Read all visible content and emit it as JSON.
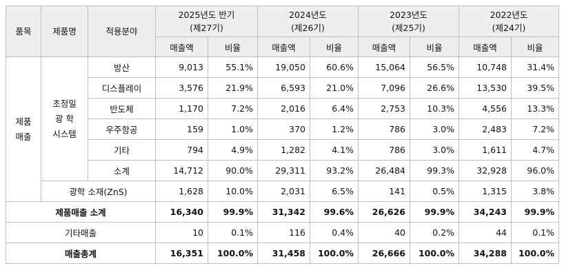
{
  "headers": {
    "group": "품목",
    "product": "제품명",
    "application": "적용분야",
    "periods": [
      {
        "line1": "2025년도 반기",
        "line2": "(제27기)"
      },
      {
        "line1": "2024년도",
        "line2": "(제26기)"
      },
      {
        "line1": "2023년도",
        "line2": "(제25기)"
      },
      {
        "line1": "2022년도",
        "line2": "(제24기)"
      }
    ],
    "sales": "매출액",
    "ratio": "비율"
  },
  "group_label": {
    "line1": "제품",
    "line2": "매출"
  },
  "product_label": {
    "line1": "초정밀",
    "line2": "광 학",
    "line3": "시스템"
  },
  "rows": [
    {
      "label": "방산",
      "cells": [
        "9,013",
        "55.1%",
        "19,050",
        "60.6%",
        "15,064",
        "56.5%",
        "10,748",
        "31.4%"
      ]
    },
    {
      "label": "디스플레이",
      "cells": [
        "3,576",
        "21.9%",
        "6,593",
        "21.0%",
        "7,096",
        "26.6%",
        "13,530",
        "39.5%"
      ]
    },
    {
      "label": "반도체",
      "cells": [
        "1,170",
        "7.2%",
        "2,016",
        "6.4%",
        "2,753",
        "10.3%",
        "4,556",
        "13.3%"
      ]
    },
    {
      "label": "우주항공",
      "cells": [
        "159",
        "1.0%",
        "370",
        "1.2%",
        "786",
        "3.0%",
        "2,483",
        "7.2%"
      ]
    },
    {
      "label": "기타",
      "cells": [
        "794",
        "4.9%",
        "1,282",
        "4.1%",
        "786",
        "3.0%",
        "1,611",
        "4.7%"
      ]
    },
    {
      "label": "소계",
      "cells": [
        "14,712",
        "90.0%",
        "29,311",
        "93.2%",
        "26,484",
        "99.3%",
        "32,928",
        "96.0%"
      ]
    }
  ],
  "zns_row": {
    "label": "광학 소재(ZnS)",
    "cells": [
      "1,628",
      "10.0%",
      "2,031",
      "6.5%",
      "141",
      "0.5%",
      "1,315",
      "3.8%"
    ]
  },
  "product_total_row": {
    "label": "제품매출 소계",
    "cells": [
      "16,340",
      "99.9%",
      "31,342",
      "99.6%",
      "26,626",
      "99.9%",
      "34,243",
      "99.9%"
    ]
  },
  "other_sales_row": {
    "label": "기타매출",
    "cells": [
      "10",
      "0.1%",
      "116",
      "0.4%",
      "40",
      "0.2%",
      "44",
      "0.1%"
    ]
  },
  "grand_total_row": {
    "label": "매출총계",
    "cells": [
      "16,351",
      "100.0%",
      "31,458",
      "100.0%",
      "26,666",
      "100.0%",
      "34,288",
      "100.0%"
    ]
  }
}
